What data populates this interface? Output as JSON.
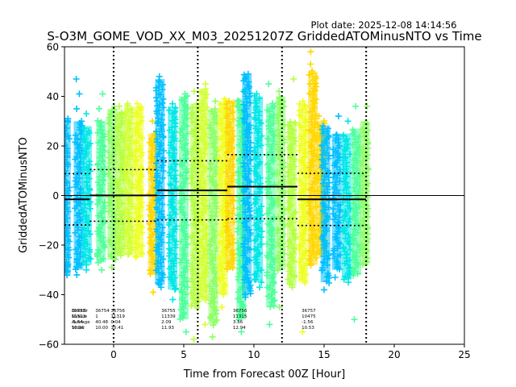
{
  "chart_data": {
    "type": "scatter",
    "title": "S-O3M_GOME_VOD_XX_M03_20251207Z GriddedATOMinusNTO vs Time",
    "plot_date": "Plot date: 2025-12-08 14:14:56",
    "xlabel": "Time from Forecast 00Z [Hour]",
    "ylabel": "GriddedATOMinusNTO",
    "xlim": [
      -3.5,
      25
    ],
    "ylim": [
      -60,
      60
    ],
    "xticks": [
      0,
      5,
      10,
      15,
      20,
      25
    ],
    "yticks": [
      -60,
      -40,
      -20,
      0,
      20,
      40,
      60
    ],
    "vlines": [
      0,
      6,
      12,
      18
    ],
    "zero_line": 0,
    "clusters": [
      {
        "x": -3.4,
        "c": "#00bfff",
        "lo": -32,
        "hi": 31,
        "ex": [
          31,
          -30
        ]
      },
      {
        "x": -2.5,
        "c": "#00bfff",
        "lo": -30,
        "hi": 30,
        "ex": [
          47,
          41,
          35,
          -32,
          -28
        ]
      },
      {
        "x": -1.9,
        "c": "#00e6e6",
        "lo": -28,
        "hi": 28,
        "ex": [
          33,
          -30
        ]
      },
      {
        "x": -0.9,
        "c": "#4dff9a",
        "lo": -27,
        "hi": 30,
        "ex": [
          41,
          35,
          -30
        ]
      },
      {
        "x": -0.1,
        "c": "#8cff66",
        "lo": -26,
        "hi": 35,
        "ex": [
          36,
          -29
        ]
      },
      {
        "x": 0.5,
        "c": "#b3ff40",
        "lo": -24,
        "hi": 34,
        "ex": [
          36
        ]
      },
      {
        "x": 1.1,
        "c": "#d2ff33",
        "lo": -24,
        "hi": 36,
        "ex": [
          37
        ]
      },
      {
        "x": 1.8,
        "c": "#eeff1f",
        "lo": -25,
        "hi": 36,
        "ex": [
          37
        ]
      },
      {
        "x": 2.8,
        "c": "#ffd700",
        "lo": -32,
        "hi": 25,
        "ex": [
          30,
          -39
        ]
      },
      {
        "x": 3.3,
        "c": "#00bfff",
        "lo": -36,
        "hi": 47,
        "ex": [
          48,
          -37
        ]
      },
      {
        "x": 4.2,
        "c": "#00e6e6",
        "lo": -38,
        "hi": 36,
        "ex": [
          37,
          -42
        ]
      },
      {
        "x": 5.0,
        "c": "#4dff9a",
        "lo": -50,
        "hi": 40,
        "ex": [
          41,
          -55
        ]
      },
      {
        "x": 5.8,
        "c": "#b3ff40",
        "lo": -45,
        "hi": 37,
        "ex": [
          42,
          -58
        ]
      },
      {
        "x": 6.4,
        "c": "#d2ff33",
        "lo": -42,
        "hi": 43,
        "ex": [
          45,
          -52
        ]
      },
      {
        "x": 7.1,
        "c": "#8cff66",
        "lo": -52,
        "hi": 35,
        "ex": [
          38,
          -57
        ]
      },
      {
        "x": 7.8,
        "c": "#eeff1f",
        "lo": -40,
        "hi": 38,
        "ex": [
          39,
          -45
        ]
      },
      {
        "x": 8.3,
        "c": "#ffd700",
        "lo": -30,
        "hi": 38,
        "ex": [
          38
        ]
      },
      {
        "x": 9.1,
        "c": "#4dff9a",
        "lo": -50,
        "hi": 39,
        "ex": [
          42,
          -55
        ]
      },
      {
        "x": 9.5,
        "c": "#00bfff",
        "lo": -40,
        "hi": 49,
        "ex": [
          49,
          -41
        ]
      },
      {
        "x": 10.3,
        "c": "#00e6e6",
        "lo": -35,
        "hi": 40,
        "ex": [
          41,
          -37
        ]
      },
      {
        "x": 11.2,
        "c": "#4dff9a",
        "lo": -45,
        "hi": 37,
        "ex": [
          45,
          -52
        ]
      },
      {
        "x": 11.9,
        "c": "#8cff66",
        "lo": -30,
        "hi": 40,
        "ex": [
          42,
          -45
        ]
      },
      {
        "x": 12.7,
        "c": "#b3ff40",
        "lo": -36,
        "hi": 30,
        "ex": [
          47,
          -37
        ]
      },
      {
        "x": 13.5,
        "c": "#eeff1f",
        "lo": -35,
        "hi": 37,
        "ex": [
          38,
          -55
        ]
      },
      {
        "x": 14.2,
        "c": "#ffd700",
        "lo": -28,
        "hi": 50,
        "ex": [
          58,
          53,
          45,
          38
        ]
      },
      {
        "x": 14.8,
        "c": "#ffd700",
        "lo": -24,
        "hi": 30,
        "ex": [
          32
        ]
      },
      {
        "x": 15.1,
        "c": "#00bfff",
        "lo": -35,
        "hi": 28,
        "ex": [
          -38
        ]
      },
      {
        "x": 15.9,
        "c": "#00bfff",
        "lo": -30,
        "hi": 25,
        "ex": [
          32,
          -33
        ]
      },
      {
        "x": 16.6,
        "c": "#00e6e6",
        "lo": -34,
        "hi": 25,
        "ex": [
          30,
          -35
        ]
      },
      {
        "x": 17.3,
        "c": "#4dff9a",
        "lo": -32,
        "hi": 27,
        "ex": [
          36,
          -50
        ]
      },
      {
        "x": 17.9,
        "c": "#8cff66",
        "lo": -28,
        "hi": 30,
        "ex": [
          36
        ]
      }
    ],
    "windows": [
      {
        "x0": -3.5,
        "x1": -1.7,
        "mean": -1.54,
        "sd": 10.36
      },
      {
        "x0": -1.7,
        "x1": 3.1,
        "mean": 0.04,
        "sd": 10.41
      },
      {
        "x0": 3.1,
        "x1": 8.1,
        "mean": 2.09,
        "sd": 11.93
      },
      {
        "x0": 8.1,
        "x1": 13.1,
        "mean": 3.56,
        "sd": 12.94
      },
      {
        "x0": 13.1,
        "x1": 18.0,
        "mean": -1.56,
        "sd": 10.53
      }
    ],
    "stats_labels": [
      "OrbitNr",
      "NValue",
      "Average",
      "Stdev"
    ],
    "stats_blocks": [
      {
        "x": -3.0,
        "lines": [
          "36753",
          "11313",
          "-1.54",
          "10.36"
        ]
      },
      {
        "x": -0.2,
        "lines": [
          "36756",
          "11319",
          "0.04",
          "10.41"
        ]
      },
      {
        "x": -1.3,
        "lines": [
          "36754",
          "1",
          "40.48",
          "10.00"
        ]
      },
      {
        "x": 3.4,
        "lines": [
          "36755",
          "11339",
          "2.09",
          "11.93"
        ]
      },
      {
        "x": 8.5,
        "lines": [
          "36756",
          "11315",
          "3.56",
          "12.94"
        ]
      },
      {
        "x": 13.4,
        "lines": [
          "36757",
          "10475",
          "-1.56",
          "10.53"
        ]
      }
    ]
  }
}
